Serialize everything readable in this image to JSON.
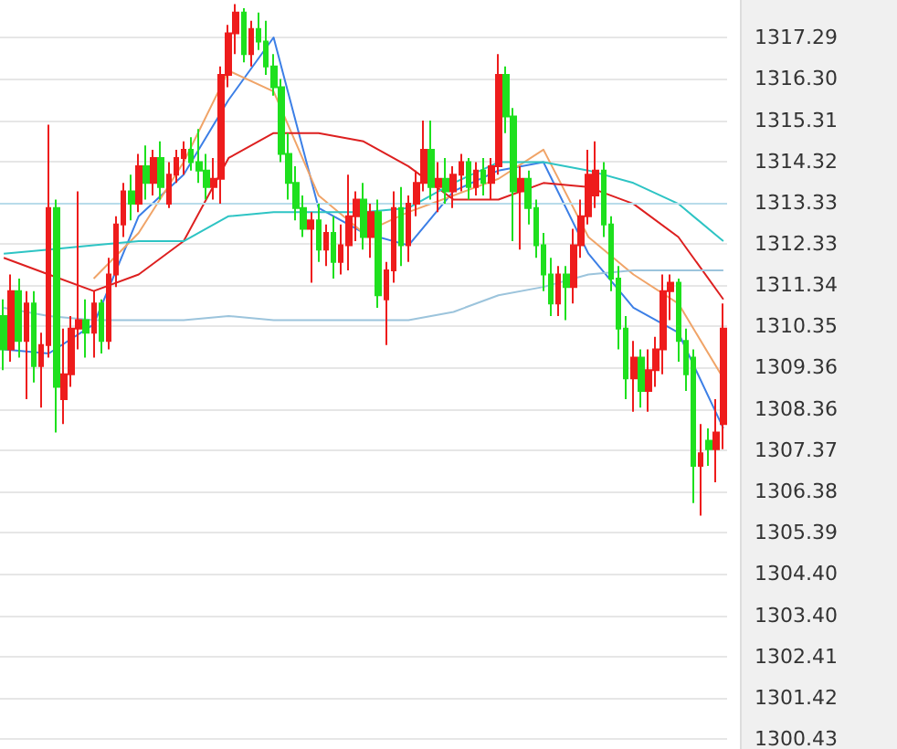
{
  "chart_data": {
    "type": "candlestick",
    "colors": [
      "#ee1c1c",
      "#1ee01e"
    ],
    "grid": "y",
    "categories": [
      null,
      null,
      null,
      null,
      null,
      null,
      null,
      null,
      null,
      null,
      null,
      null,
      null,
      null,
      null,
      null,
      null,
      null,
      null,
      null,
      null,
      null,
      null,
      null,
      null,
      null,
      null,
      null,
      null,
      null,
      null,
      null,
      null,
      null,
      null,
      null,
      null,
      null,
      null,
      null,
      null,
      null,
      null,
      null,
      null,
      null,
      null,
      null,
      null,
      null,
      null,
      null,
      null,
      null,
      null,
      null,
      null,
      null,
      null,
      null,
      null,
      null,
      null,
      null,
      null,
      null,
      null,
      null,
      null,
      null,
      null,
      null,
      null,
      null,
      null,
      null,
      null,
      null,
      null,
      null,
      null,
      null,
      null,
      null,
      null,
      null,
      null,
      null,
      null,
      null,
      null,
      null,
      null,
      null,
      null,
      null,
      null
    ],
    "ylim": [
      1300.3,
      1318.2
    ],
    "yticks": [
      1300.43,
      1301.42,
      1302.41,
      {
        "value": 1303.4,
        "label": "1303.40"
      },
      {
        "value": 1304.4,
        "label": "1304.40"
      },
      1305.39,
      1306.38,
      1307.37,
      1308.36,
      1309.36,
      1310.35,
      1311.34,
      1312.33,
      1313.33,
      1314.32,
      1315.31,
      {
        "value": 1316.3,
        "label": "1316.30"
      },
      1317.29
    ],
    "ref_lines": [
      {
        "axis": "y",
        "value": 1313.33,
        "color": "#b8dcea"
      }
    ],
    "series": [
      {
        "type": "candlestick",
        "ohlc": [
          [
            1310.6,
            1311.0,
            1309.3,
            1309.8
          ],
          [
            1309.8,
            1311.6,
            1309.5,
            1311.2
          ],
          [
            1311.2,
            1311.5,
            1309.6,
            1310.0
          ],
          [
            1310.0,
            1311.2,
            1308.6,
            1310.9
          ],
          [
            1310.9,
            1311.2,
            1309.0,
            1309.4
          ],
          [
            1309.4,
            1310.2,
            1308.4,
            1309.9
          ],
          [
            1309.9,
            1315.2,
            1309.6,
            1313.2
          ],
          [
            1313.2,
            1313.4,
            1307.8,
            1308.9
          ],
          [
            1308.6,
            1310.3,
            1308.0,
            1309.2
          ],
          [
            1309.2,
            1310.6,
            1308.9,
            1310.3
          ],
          [
            1310.3,
            1313.6,
            1309.8,
            1310.5
          ],
          [
            1310.5,
            1311.0,
            1309.6,
            1310.2
          ],
          [
            1310.2,
            1311.2,
            1309.6,
            1310.9
          ],
          [
            1310.9,
            1311.0,
            1309.7,
            1310.0
          ],
          [
            1310.0,
            1312.0,
            1309.8,
            1311.6
          ],
          [
            1311.6,
            1313.0,
            1311.3,
            1312.8
          ],
          [
            1312.8,
            1313.8,
            1312.5,
            1313.6
          ],
          [
            1313.6,
            1314.0,
            1312.9,
            1313.3
          ],
          [
            1313.3,
            1314.5,
            1313.1,
            1314.2
          ],
          [
            1314.2,
            1314.7,
            1313.4,
            1313.8
          ],
          [
            1313.8,
            1314.6,
            1313.5,
            1314.4
          ],
          [
            1314.4,
            1314.8,
            1313.4,
            1313.7
          ],
          [
            1313.3,
            1314.3,
            1313.2,
            1314.0
          ],
          [
            1314.0,
            1314.6,
            1313.8,
            1314.4
          ],
          [
            1314.4,
            1314.8,
            1314.0,
            1314.6
          ],
          [
            1314.6,
            1314.9,
            1314.1,
            1314.3
          ],
          [
            1314.3,
            1315.1,
            1313.8,
            1314.1
          ],
          [
            1314.1,
            1314.5,
            1313.4,
            1313.7
          ],
          [
            1313.7,
            1314.4,
            1313.4,
            1313.9
          ],
          [
            1313.9,
            1316.6,
            1313.3,
            1316.4
          ],
          [
            1316.4,
            1317.6,
            1316.1,
            1317.4
          ],
          [
            1317.4,
            1318.1,
            1316.9,
            1317.9
          ],
          [
            1317.9,
            1318.0,
            1316.7,
            1316.9
          ],
          [
            1316.9,
            1317.7,
            1316.6,
            1317.5
          ],
          [
            1317.5,
            1317.9,
            1317.0,
            1317.2
          ],
          [
            1317.2,
            1317.7,
            1316.4,
            1316.6
          ],
          [
            1316.6,
            1316.9,
            1315.9,
            1316.1
          ],
          [
            1316.1,
            1316.3,
            1314.3,
            1314.5
          ],
          [
            1314.5,
            1315.0,
            1313.4,
            1313.8
          ],
          [
            1313.8,
            1314.2,
            1312.9,
            1313.2
          ],
          [
            1313.2,
            1313.5,
            1312.5,
            1312.7
          ],
          [
            1312.7,
            1313.1,
            1311.4,
            1312.9
          ],
          [
            1312.9,
            1313.3,
            1311.9,
            1312.2
          ],
          [
            1312.2,
            1312.8,
            1311.8,
            1312.6
          ],
          [
            1312.6,
            1313.0,
            1311.5,
            1311.9
          ],
          [
            1311.9,
            1312.8,
            1311.6,
            1312.3
          ],
          [
            1312.3,
            1314.0,
            1311.7,
            1313.0
          ],
          [
            1313.0,
            1313.6,
            1312.4,
            1313.4
          ],
          [
            1313.4,
            1313.8,
            1312.2,
            1312.5
          ],
          [
            1312.5,
            1313.3,
            1312.0,
            1313.1
          ],
          [
            1313.1,
            1313.4,
            1310.8,
            1311.1
          ],
          [
            1311.0,
            1311.9,
            1309.9,
            1311.7
          ],
          [
            1311.7,
            1313.6,
            1311.4,
            1313.2
          ],
          [
            1313.2,
            1313.7,
            1311.8,
            1312.3
          ],
          [
            1312.3,
            1313.5,
            1311.9,
            1313.3
          ],
          [
            1313.3,
            1314.1,
            1313.0,
            1313.8
          ],
          [
            1313.8,
            1315.3,
            1313.6,
            1314.6
          ],
          [
            1314.6,
            1315.3,
            1313.4,
            1313.7
          ],
          [
            1313.7,
            1314.3,
            1313.1,
            1313.9
          ],
          [
            1313.9,
            1314.4,
            1313.3,
            1313.6
          ],
          [
            1313.6,
            1314.2,
            1313.2,
            1314.0
          ],
          [
            1314.0,
            1314.5,
            1313.6,
            1314.3
          ],
          [
            1314.3,
            1314.4,
            1313.4,
            1313.7
          ],
          [
            1313.7,
            1314.3,
            1313.5,
            1314.1
          ],
          [
            1314.1,
            1314.4,
            1313.5,
            1313.8
          ],
          [
            1313.8,
            1314.4,
            1313.4,
            1314.2
          ],
          [
            1314.2,
            1316.9,
            1314.0,
            1316.4
          ],
          [
            1316.4,
            1316.6,
            1315.0,
            1315.4
          ],
          [
            1315.4,
            1315.6,
            1312.4,
            1313.6
          ],
          [
            1313.6,
            1314.2,
            1312.2,
            1313.9
          ],
          [
            1313.9,
            1314.1,
            1312.8,
            1313.2
          ],
          [
            1313.2,
            1313.4,
            1312.0,
            1312.3
          ],
          [
            1312.3,
            1312.6,
            1311.2,
            1311.6
          ],
          [
            1311.6,
            1312.0,
            1310.6,
            1310.9
          ],
          [
            1310.9,
            1311.8,
            1310.6,
            1311.6
          ],
          [
            1311.6,
            1311.8,
            1310.5,
            1311.3
          ],
          [
            1311.3,
            1312.7,
            1310.9,
            1312.3
          ],
          [
            1312.3,
            1313.4,
            1312.0,
            1313.0
          ],
          [
            1313.0,
            1314.6,
            1312.8,
            1314.0
          ],
          [
            1313.5,
            1314.8,
            1313.2,
            1314.1
          ],
          [
            1314.1,
            1314.3,
            1312.5,
            1312.8
          ],
          [
            1312.8,
            1313.0,
            1311.2,
            1311.5
          ],
          [
            1311.5,
            1311.8,
            1309.8,
            1310.3
          ],
          [
            1310.3,
            1310.6,
            1308.6,
            1309.1
          ],
          [
            1309.1,
            1310.0,
            1308.3,
            1309.6
          ],
          [
            1309.6,
            1309.8,
            1308.4,
            1308.8
          ],
          [
            1308.8,
            1309.8,
            1308.3,
            1309.3
          ],
          [
            1309.3,
            1310.1,
            1308.9,
            1309.8
          ],
          [
            1309.8,
            1311.6,
            1309.2,
            1311.2
          ],
          [
            1311.2,
            1311.6,
            1310.5,
            1311.4
          ],
          [
            1311.4,
            1311.5,
            1309.5,
            1310.0
          ],
          [
            1310.0,
            1310.3,
            1308.8,
            1309.2
          ],
          [
            1309.6,
            1309.8,
            1306.1,
            1307.0
          ],
          [
            1307.0,
            1308.0,
            1305.8,
            1307.3
          ],
          [
            1307.6,
            1307.9,
            1307.0,
            1307.4
          ],
          [
            1307.4,
            1308.6,
            1306.6,
            1307.8
          ],
          [
            1308.0,
            1310.9,
            1307.4,
            1310.3
          ]
        ]
      },
      {
        "type": "line",
        "color": "#3c7fe6",
        "values": [
          1309.8,
          null,
          null,
          null,
          null,
          null,
          1309.7,
          null,
          null,
          null,
          null,
          null,
          1310.4,
          null,
          null,
          null,
          null,
          null,
          1313.0,
          null,
          null,
          null,
          null,
          null,
          1314.0,
          null,
          null,
          null,
          null,
          null,
          1315.8,
          null,
          null,
          null,
          null,
          null,
          1317.3,
          null,
          null,
          null,
          null,
          null,
          1313.2,
          null,
          null,
          null,
          null,
          null,
          1312.6,
          null,
          null,
          null,
          null,
          null,
          1312.3,
          null,
          null,
          null,
          null,
          null,
          1313.6,
          null,
          null,
          null,
          null,
          null,
          1314.1,
          null,
          null,
          null,
          null,
          null,
          1314.3,
          null,
          null,
          null,
          null,
          null,
          1312.1,
          null,
          null,
          null,
          null,
          null,
          1310.8,
          null,
          null,
          null,
          null,
          null,
          1310.2,
          null,
          null,
          null,
          null,
          null,
          1307.9
        ]
      },
      {
        "type": "line",
        "color": "#f0a468",
        "values": [
          null,
          null,
          null,
          null,
          null,
          null,
          null,
          null,
          null,
          null,
          null,
          null,
          1311.5,
          null,
          null,
          null,
          null,
          null,
          1312.6,
          null,
          null,
          null,
          null,
          null,
          1314.3,
          null,
          null,
          null,
          null,
          null,
          1316.5,
          null,
          null,
          null,
          null,
          null,
          1316.0,
          null,
          null,
          null,
          null,
          null,
          1313.5,
          null,
          null,
          null,
          null,
          null,
          1312.6,
          null,
          null,
          null,
          null,
          null,
          1313.1,
          null,
          null,
          null,
          null,
          null,
          1313.5,
          null,
          null,
          null,
          null,
          null,
          1313.9,
          null,
          null,
          null,
          null,
          null,
          1314.6,
          null,
          null,
          null,
          null,
          null,
          1312.5,
          null,
          null,
          null,
          null,
          null,
          1311.6,
          null,
          null,
          null,
          null,
          null,
          1310.9,
          null,
          null,
          null,
          null,
          null,
          1309.1
        ]
      },
      {
        "type": "line",
        "color": "#dd2020",
        "values": [
          1312.0,
          null,
          null,
          null,
          null,
          null,
          1311.6,
          null,
          null,
          null,
          null,
          null,
          1311.2,
          null,
          null,
          null,
          null,
          null,
          1311.6,
          null,
          null,
          null,
          null,
          null,
          1312.4,
          null,
          null,
          null,
          null,
          null,
          1314.4,
          null,
          null,
          null,
          null,
          null,
          1315.0,
          null,
          null,
          null,
          null,
          null,
          1315.0,
          null,
          null,
          null,
          null,
          null,
          1314.8,
          null,
          null,
          null,
          null,
          null,
          1314.2,
          null,
          null,
          null,
          null,
          null,
          1313.4,
          null,
          null,
          null,
          null,
          null,
          1313.4,
          null,
          null,
          null,
          null,
          null,
          1313.8,
          null,
          null,
          null,
          null,
          null,
          1313.7,
          null,
          null,
          null,
          null,
          null,
          1313.3,
          null,
          null,
          null,
          null,
          null,
          1312.5,
          null,
          null,
          null,
          null,
          null,
          1311.0
        ]
      },
      {
        "type": "line",
        "color": "#2ec4c4",
        "values": [
          1312.1,
          null,
          null,
          null,
          null,
          null,
          1312.2,
          null,
          null,
          null,
          null,
          null,
          1312.3,
          null,
          null,
          null,
          null,
          null,
          1312.4,
          null,
          null,
          null,
          null,
          null,
          1312.4,
          null,
          null,
          null,
          null,
          null,
          1313.0,
          null,
          null,
          null,
          null,
          null,
          1313.1,
          null,
          null,
          null,
          null,
          null,
          1313.1,
          null,
          null,
          null,
          null,
          null,
          1313.1,
          null,
          null,
          null,
          null,
          null,
          1313.2,
          null,
          null,
          null,
          null,
          null,
          1313.8,
          null,
          null,
          null,
          null,
          null,
          1314.3,
          null,
          null,
          null,
          null,
          null,
          1314.3,
          null,
          null,
          null,
          null,
          null,
          1314.1,
          null,
          null,
          null,
          null,
          null,
          1313.8,
          null,
          null,
          null,
          null,
          null,
          1313.3,
          null,
          null,
          null,
          null,
          null,
          1312.4
        ]
      },
      {
        "type": "line",
        "color": "#9cc4dc",
        "values": [
          1310.8,
          null,
          null,
          null,
          null,
          null,
          1310.6,
          null,
          null,
          null,
          null,
          null,
          1310.5,
          null,
          null,
          null,
          null,
          null,
          1310.5,
          null,
          null,
          null,
          null,
          null,
          1310.5,
          null,
          null,
          null,
          null,
          null,
          1310.6,
          null,
          null,
          null,
          null,
          null,
          1310.5,
          null,
          null,
          null,
          null,
          null,
          1310.5,
          null,
          null,
          null,
          null,
          null,
          1310.5,
          null,
          null,
          null,
          null,
          null,
          1310.5,
          null,
          null,
          null,
          null,
          null,
          1310.7,
          null,
          null,
          null,
          null,
          null,
          1311.1,
          null,
          null,
          null,
          null,
          null,
          1311.3,
          null,
          null,
          null,
          null,
          null,
          1311.6,
          null,
          null,
          null,
          null,
          null,
          1311.7,
          null,
          null,
          null,
          null,
          null,
          1311.7,
          null,
          null,
          null,
          null,
          null,
          1311.7
        ]
      }
    ]
  }
}
